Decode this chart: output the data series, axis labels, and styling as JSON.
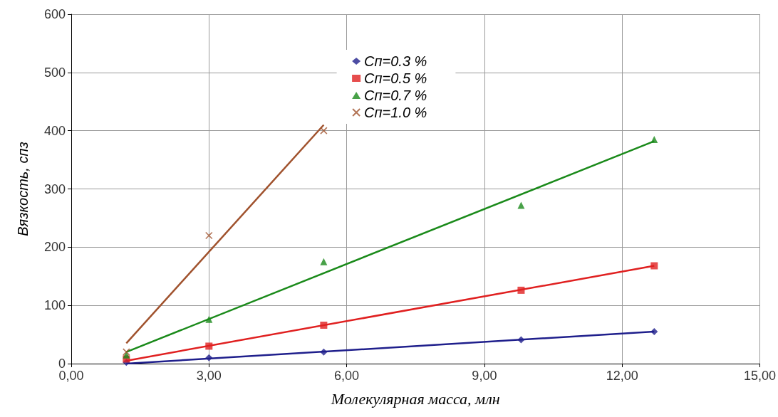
{
  "chart_data": {
    "type": "scatter",
    "xlabel": "Молекулярная масса, млн",
    "ylabel": "Вязкость, спз",
    "xlim": [
      0,
      15
    ],
    "xticks": [
      {
        "value": 0,
        "label": "0,00"
      },
      {
        "value": 3,
        "label": "3,00"
      },
      {
        "value": 6,
        "label": "6,00"
      },
      {
        "value": 9,
        "label": "9,00"
      },
      {
        "value": 12,
        "label": "12,00"
      },
      {
        "value": 15,
        "label": "15,00"
      }
    ],
    "ylim": [
      0,
      600
    ],
    "yticks": [
      0,
      100,
      200,
      300,
      400,
      500,
      600
    ],
    "grid": true,
    "legend": "top",
    "series": [
      {
        "name": "Cп=0.3 %",
        "color": "#1f1f8c",
        "marker": "diamond",
        "x": [
          1.2,
          3,
          5.5,
          9.8,
          12.7
        ],
        "values": [
          2,
          10,
          20,
          41,
          55
        ]
      },
      {
        "name": "Cп=0.5 %",
        "color": "#e02020",
        "marker": "square",
        "x": [
          1.2,
          3,
          5.5,
          9.8,
          12.7
        ],
        "values": [
          8,
          30,
          66,
          126,
          168
        ]
      },
      {
        "name": "Cп=0.7 %",
        "color": "#1a8a1a",
        "marker": "triangle",
        "x": [
          1.2,
          3,
          5.5,
          9.8,
          12.7
        ],
        "values": [
          15,
          76,
          175,
          272,
          385
        ]
      },
      {
        "name": "Cп=1.0 %",
        "color": "#a0522d",
        "marker": "cross",
        "x": [
          1.2,
          3,
          5.5
        ],
        "values": [
          20,
          220,
          400
        ]
      },
      {
        "type": "line",
        "color": "#1f1f8c",
        "line_style": "solid",
        "x": [
          1.2,
          12.7
        ],
        "values": [
          0,
          55
        ]
      },
      {
        "type": "line",
        "color": "#e02020",
        "line_style": "solid",
        "x": [
          1.2,
          12.7
        ],
        "values": [
          5,
          168
        ]
      },
      {
        "type": "line",
        "color": "#1a8a1a",
        "line_style": "solid",
        "x": [
          1.2,
          12.7
        ],
        "values": [
          20,
          382
        ]
      },
      {
        "type": "line",
        "color": "#a0522d",
        "line_style": "solid",
        "x": [
          1.2,
          5.5
        ],
        "values": [
          35,
          410
        ]
      }
    ]
  }
}
